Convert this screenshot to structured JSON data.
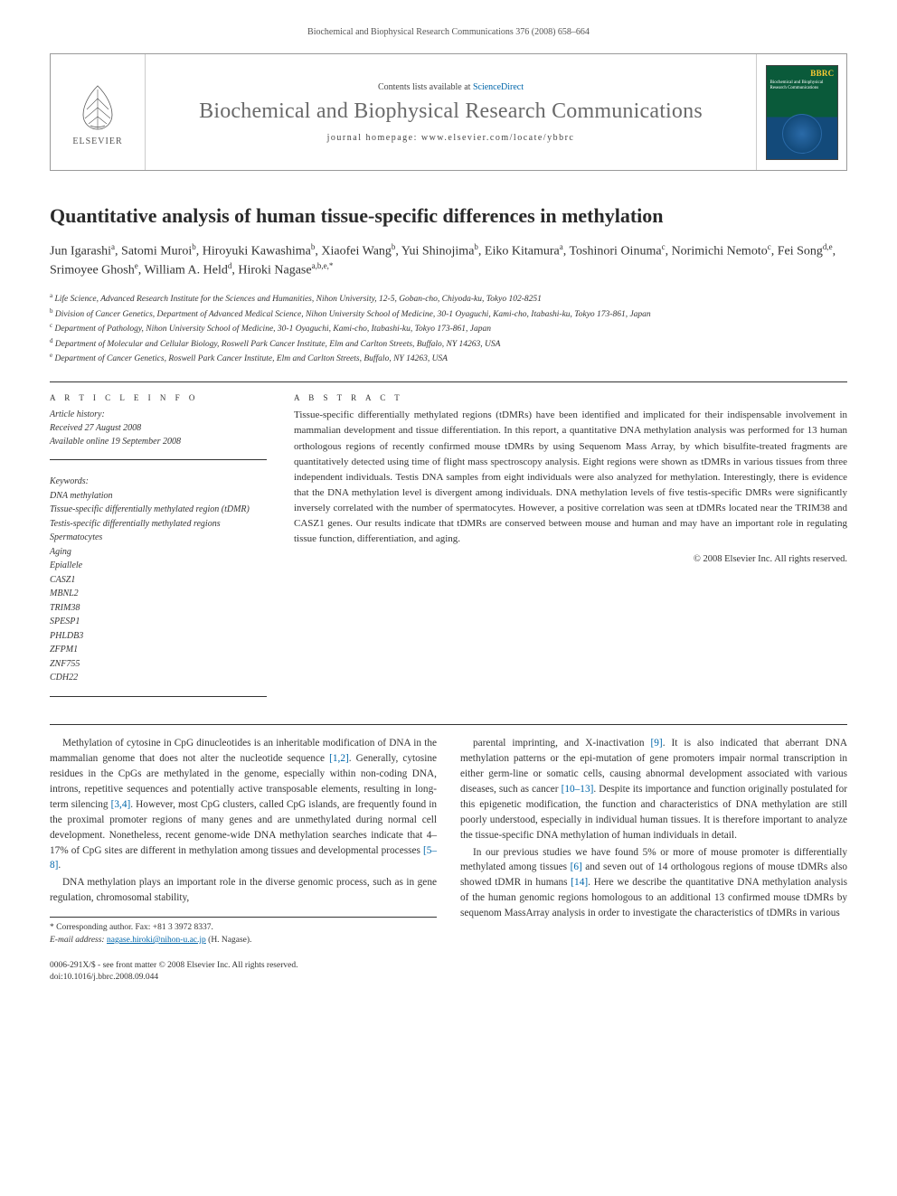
{
  "running_header": "Biochemical and Biophysical Research Communications 376 (2008) 658–664",
  "masthead": {
    "publisher": "ELSEVIER",
    "contents_prefix": "Contents lists available at ",
    "contents_link": "ScienceDirect",
    "journal_name": "Biochemical and Biophysical Research Communications",
    "homepage_prefix": "journal homepage: ",
    "homepage": "www.elsevier.com/locate/ybbrc",
    "cover_abbrev": "BBRC",
    "cover_lines": "Biochemical and\nBiophysical\nResearch\nCommunications"
  },
  "title": "Quantitative analysis of human tissue-specific differences in methylation",
  "authors_html": "Jun Igarashi<span class='sup'>a</span>, Satomi Muroi<span class='sup'>b</span>, Hiroyuki Kawashima<span class='sup'>b</span>, Xiaofei Wang<span class='sup'>b</span>, Yui Shinojima<span class='sup'>b</span>, Eiko Kitamura<span class='sup'>a</span>, Toshinori Oinuma<span class='sup'>c</span>, Norimichi Nemoto<span class='sup'>c</span>, Fei Song<span class='sup'>d,e</span>, Srimoyee Ghosh<span class='sup'>e</span>, William A. Held<span class='sup'>d</span>, Hiroki Nagase<span class='sup'>a,b,e,*</span>",
  "affiliations": [
    {
      "sup": "a",
      "text": "Life Science, Advanced Research Institute for the Sciences and Humanities, Nihon University, 12-5, Goban-cho, Chiyoda-ku, Tokyo 102-8251"
    },
    {
      "sup": "b",
      "text": "Division of Cancer Genetics, Department of Advanced Medical Science, Nihon University School of Medicine, 30-1 Oyaguchi, Kami-cho, Itabashi-ku, Tokyo 173-861, Japan"
    },
    {
      "sup": "c",
      "text": "Department of Pathology, Nihon University School of Medicine, 30-1 Oyaguchi, Kami-cho, Itabashi-ku, Tokyo 173-861, Japan"
    },
    {
      "sup": "d",
      "text": "Department of Molecular and Cellular Biology, Roswell Park Cancer Institute, Elm and Carlton Streets, Buffalo, NY 14263, USA"
    },
    {
      "sup": "e",
      "text": "Department of Cancer Genetics, Roswell Park Cancer Institute, Elm and Carlton Streets, Buffalo, NY 14263, USA"
    }
  ],
  "article_info_heading": "A R T I C L E   I N F O",
  "abstract_heading": "A B S T R A C T",
  "history": {
    "label": "Article history:",
    "received": "Received 27 August 2008",
    "online": "Available online 19 September 2008"
  },
  "keywords_label": "Keywords:",
  "keywords": [
    "DNA methylation",
    "Tissue-specific differentially methylated region (tDMR)",
    "Testis-specific differentially methylated regions",
    "Spermatocytes",
    "Aging",
    "Epiallele",
    "CASZ1",
    "MBNL2",
    "TRIM38",
    "SPESP1",
    "PHLDB3",
    "ZFPM1",
    "ZNF755",
    "CDH22"
  ],
  "abstract": "Tissue-specific differentially methylated regions (tDMRs) have been identified and implicated for their indispensable involvement in mammalian development and tissue differentiation. In this report, a quantitative DNA methylation analysis was performed for 13 human orthologous regions of recently confirmed mouse tDMRs by using Sequenom Mass Array, by which bisulfite-treated fragments are quantitatively detected using time of flight mass spectroscopy analysis. Eight regions were shown as tDMRs in various tissues from three independent individuals. Testis DNA samples from eight individuals were also analyzed for methylation. Interestingly, there is evidence that the DNA methylation level is divergent among individuals. DNA methylation levels of five testis-specific DMRs were significantly inversely correlated with the number of spermatocytes. However, a positive correlation was seen at tDMRs located near the TRIM38 and CASZ1 genes. Our results indicate that tDMRs are conserved between mouse and human and may have an important role in regulating tissue function, differentiation, and aging.",
  "copyright": "© 2008 Elsevier Inc. All rights reserved.",
  "body": {
    "col1_p1": "Methylation of cytosine in CpG dinucleotides is an inheritable modification of DNA in the mammalian genome that does not alter the nucleotide sequence [1,2]. Generally, cytosine residues in the CpGs are methylated in the genome, especially within non-coding DNA, introns, repetitive sequences and potentially active transposable elements, resulting in long-term silencing [3,4]. However, most CpG clusters, called CpG islands, are frequently found in the proximal promoter regions of many genes and are unmethylated during normal cell development. Nonetheless, recent genome-wide DNA methylation searches indicate that 4–17% of CpG sites are different in methylation among tissues and developmental processes [5–8].",
    "col1_p2": "DNA methylation plays an important role in the diverse genomic process, such as in gene regulation, chromosomal stability,",
    "col2_p1": "parental imprinting, and X-inactivation [9]. It is also indicated that aberrant DNA methylation patterns or the epi-mutation of gene promoters impair normal transcription in either germ-line or somatic cells, causing abnormal development associated with various diseases, such as cancer [10–13]. Despite its importance and function originally postulated for this epigenetic modification, the function and characteristics of DNA methylation are still poorly understood, especially in individual human tissues. It is therefore important to analyze the tissue-specific DNA methylation of human individuals in detail.",
    "col2_p2": "In our previous studies we have found 5% or more of mouse promoter is differentially methylated among tissues [6] and seven out of 14 orthologous regions of mouse tDMRs also showed tDMR in humans [14]. Here we describe the quantitative DNA methylation analysis of the human genomic regions homologous to an additional 13 confirmed mouse tDMRs by sequenom MassArray analysis in order to investigate the characteristics of tDMRs in various"
  },
  "footnotes": {
    "corresponding": "* Corresponding author. Fax: +81 3 3972 8337.",
    "email_label": "E-mail address:",
    "email": "nagase.hiroki@nihon-u.ac.jp",
    "email_person": "(H. Nagase)."
  },
  "page_bottom": {
    "issn_line": "0006-291X/$ - see front matter © 2008 Elsevier Inc. All rights reserved.",
    "doi_line": "doi:10.1016/j.bbrc.2008.09.044"
  },
  "colors": {
    "text": "#333333",
    "link": "#0066aa",
    "journal_gray": "#6a6a6a",
    "rule": "#333333",
    "cover_green": "#0a5a3a",
    "cover_blue": "#134a7a",
    "cover_accent": "#ffcc33"
  },
  "typography": {
    "body_pt": 11.3,
    "title_pt": 22,
    "authors_pt": 14,
    "affil_pt": 9.5,
    "meta_pt": 10,
    "journal_name_pt": 24
  }
}
